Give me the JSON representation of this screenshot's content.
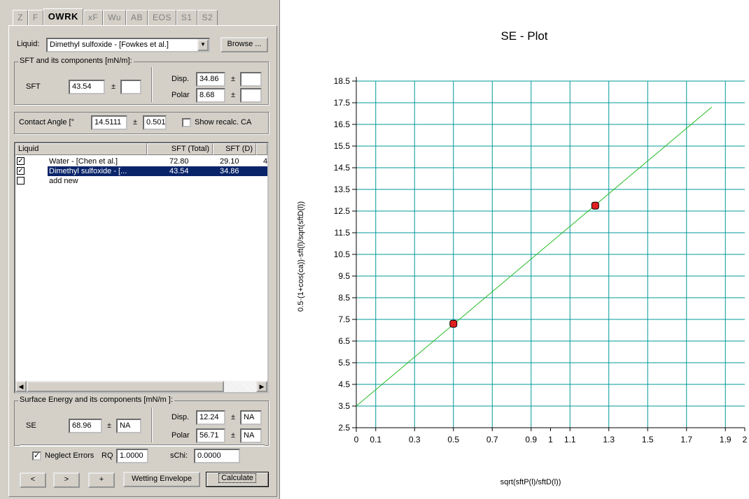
{
  "tabs": [
    "Z",
    "F",
    "OWRK",
    "xF",
    "Wu",
    "AB",
    "EOS",
    "S1",
    "S2"
  ],
  "active_tab": "OWRK",
  "liquid": {
    "label": "Liquid:",
    "value": "Dimethyl sulfoxide - [Fowkes et al.]",
    "browse_label": "Browse ..."
  },
  "sft": {
    "group_title": "SFT and its components [mN/m]:",
    "sft_label": "SFT",
    "sft_value": "43.54",
    "pm": "±",
    "sft_err": "",
    "disp_label": "Disp.",
    "disp_value": "34.86",
    "disp_err": "",
    "polar_label": "Polar",
    "polar_value": "8.68",
    "polar_err": ""
  },
  "contact_angle": {
    "label": "Contact Angle [°",
    "value": "14.5111",
    "pm": "±",
    "err": "0.501",
    "show_label": "Show recalc. CA"
  },
  "list": {
    "headers": [
      "Liquid",
      "SFT (Total)",
      "SFT (D)"
    ],
    "rows": [
      {
        "checked": true,
        "name": "Water - [Chen et al.]",
        "total": "72.80",
        "d": "29.10",
        "extra": "4",
        "selected": false
      },
      {
        "checked": true,
        "name": "Dimethyl sulfoxide - [...",
        "total": "43.54",
        "d": "34.86",
        "extra": "",
        "selected": true
      },
      {
        "checked": false,
        "name": "add new",
        "total": "",
        "d": "",
        "extra": "",
        "selected": false
      }
    ]
  },
  "surface_energy": {
    "group_title": "Surface Energy and its components [mN/m ]:",
    "se_label": "SE",
    "se_value": "68.96",
    "pm": "±",
    "se_err": "NA",
    "disp_label": "Disp.",
    "disp_value": "12.24",
    "disp_err": "NA",
    "polar_label": "Polar",
    "polar_value": "56.71",
    "polar_err": "NA"
  },
  "neglect": {
    "label": "Neglect Errors",
    "checked": true,
    "rq_label": "RQ",
    "rq_value": "1.0000",
    "schi_label": "sChi:",
    "schi_value": "0.0000"
  },
  "buttons": {
    "prev": "<",
    "next": ">",
    "add": "+",
    "wetting": "Wetting Envelope",
    "calculate": "Calculate"
  },
  "colors": {
    "grid": "#009999",
    "fit_line": "#22bb22",
    "point_fill": "#e02020",
    "selection": "#0a246a"
  },
  "chart_data": {
    "type": "scatter",
    "title": "SE - Plot",
    "xlabel": "sqrt(sftP(l)/sftD(l))",
    "ylabel": "0.5·(1+cos(ca))·sft(l)/sqrt(sftD(l))",
    "xlim": [
      0,
      2
    ],
    "ylim": [
      2.5,
      18.5
    ],
    "x_tick_labels": [
      "0",
      "0.1",
      "0.3",
      "0.5",
      "0.7",
      "0.9",
      "1",
      "1.1",
      "1.3",
      "1.5",
      "1.7",
      "1.9",
      "2"
    ],
    "y_tick_labels": [
      "2.5",
      "3.5",
      "4.5",
      "5.5",
      "6.5",
      "7.5",
      "8.5",
      "9.5",
      "10.5",
      "11.5",
      "12.5",
      "13.5",
      "14.5",
      "15.5",
      "16.5",
      "17.5",
      "18.5"
    ],
    "points": [
      {
        "x": 0.5,
        "y": 7.3
      },
      {
        "x": 1.23,
        "y": 12.75
      }
    ],
    "fit_line": {
      "x": [
        0,
        1.83
      ],
      "y": [
        3.5,
        17.3
      ]
    },
    "grid": true
  }
}
